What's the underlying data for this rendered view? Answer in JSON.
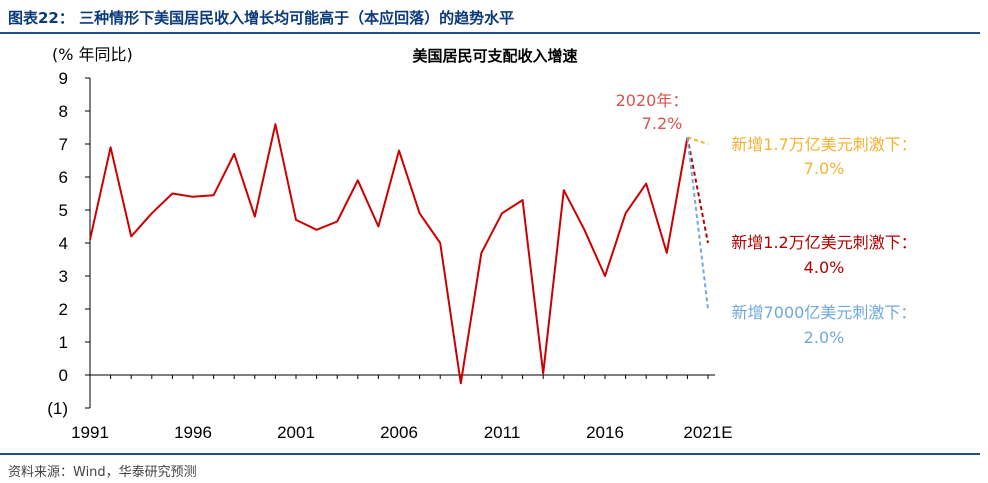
{
  "header": {
    "title": "图表22：  三种情形下美国居民收入增长均可能高于（本应回落）的趋势水平"
  },
  "footer": {
    "source": "资料来源：Wind，华泰研究预测"
  },
  "colors": {
    "main_line": "#cc0000",
    "header_text": "#0b3a7a",
    "rule": "#1f4e8c",
    "scenario_high": "#f2b233",
    "scenario_mid": "#b40000",
    "scenario_low": "#6fa8dc",
    "latest_label": "#d9534f"
  },
  "chart_data": {
    "type": "line",
    "title": "美国居民可支配收入增速",
    "ylabel": "(% 年同比)",
    "ylim": [
      -1,
      9
    ],
    "yticks": [
      -1,
      0,
      1,
      2,
      3,
      4,
      5,
      6,
      7,
      8,
      9
    ],
    "ytick_labels": [
      "(1)",
      "0",
      "1",
      "2",
      "3",
      "4",
      "5",
      "6",
      "7",
      "8",
      "9"
    ],
    "xlim": [
      1991,
      2021
    ],
    "xticks": [
      1991,
      1996,
      2001,
      2006,
      2011,
      2016,
      2021
    ],
    "xtick_labels": [
      "1991",
      "1996",
      "2001",
      "2006",
      "2011",
      "2016",
      "2021E"
    ],
    "series": [
      {
        "x": [
          1991,
          1992,
          1993,
          1994,
          1995,
          1996,
          1997,
          1998,
          1999,
          2000,
          2001,
          2002,
          2003,
          2004,
          2005,
          2006,
          2007,
          2008,
          2009,
          2010,
          2011,
          2012,
          2013,
          2014,
          2015,
          2016,
          2017,
          2018,
          2019,
          2020
        ],
        "values": [
          4.1,
          6.9,
          4.2,
          4.9,
          5.5,
          5.4,
          5.45,
          6.7,
          4.8,
          7.6,
          4.7,
          4.4,
          4.65,
          5.9,
          4.5,
          6.8,
          4.9,
          4.0,
          -0.25,
          3.7,
          4.9,
          5.3,
          0.05,
          5.6,
          4.4,
          3.0,
          4.9,
          5.8,
          3.7,
          7.2
        ]
      }
    ],
    "scenarios": [
      {
        "x": [
          2020,
          2021
        ],
        "values": [
          7.2,
          7.0
        ],
        "label": "新增1.7万亿美元刺激下：",
        "value_label": "7.0%",
        "color": "#f2b233"
      },
      {
        "x": [
          2020,
          2021
        ],
        "values": [
          7.2,
          4.0
        ],
        "label": "新增1.2万亿美元刺激下：",
        "value_label": "4.0%",
        "color": "#b40000"
      },
      {
        "x": [
          2020,
          2021
        ],
        "values": [
          7.2,
          2.0
        ],
        "label": "新增7000亿美元刺激下：",
        "value_label": "2.0%",
        "color": "#6fa8dc"
      }
    ],
    "annotations": [
      {
        "label": "2020年：",
        "value_label": "7.2%"
      }
    ],
    "grid": false,
    "legend": "none"
  }
}
